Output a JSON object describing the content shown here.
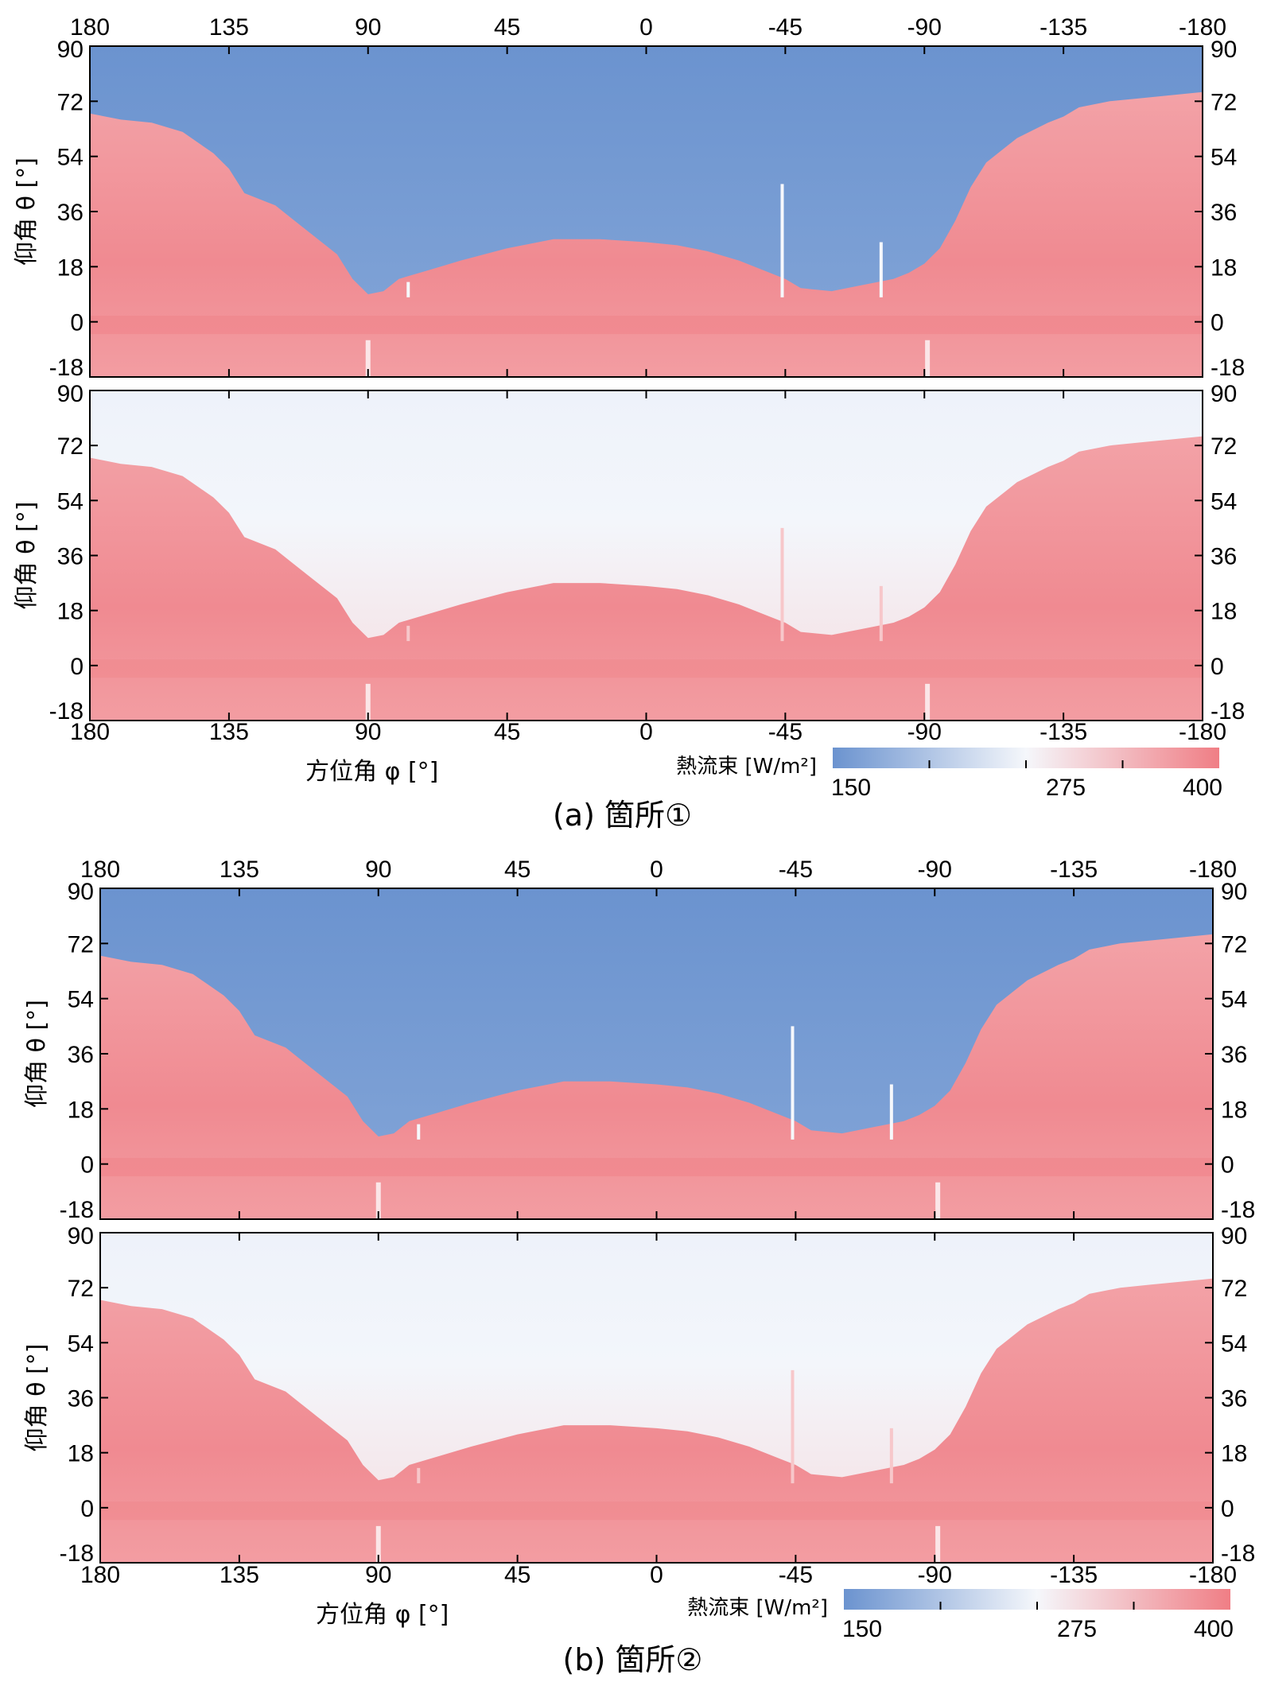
{
  "chart_data": [
    {
      "type": "heatmap",
      "caption": "(a) 箇所①",
      "xlabel": "方位角 φ [°]",
      "ylabel": "仰角 θ [°]",
      "x_ticks": [
        180,
        135,
        90,
        45,
        0,
        -45,
        -90,
        -135,
        -180
      ],
      "y_ticks": [
        90,
        72,
        54,
        36,
        18,
        0,
        -18
      ],
      "xlim": [
        180,
        -180
      ],
      "ylim": [
        -18,
        90
      ],
      "colorbar": {
        "label": "熱流束 [W/m²]",
        "min": 150,
        "mid": 275,
        "max": 400,
        "ticks": [
          "150",
          "275",
          "400"
        ],
        "low_color": "#6b93cf",
        "mid_color": "#f5f7fb",
        "high_color": "#f07e85"
      },
      "panels": [
        {
          "name": "upper",
          "sky_flux": 150,
          "ground_flux": 380
        },
        {
          "name": "lower",
          "sky_flux": 270,
          "ground_flux": 375
        }
      ]
    },
    {
      "type": "heatmap",
      "caption": "(b) 箇所②",
      "xlabel": "方位角 φ [°]",
      "ylabel": "仰角 θ [°]",
      "x_ticks": [
        180,
        135,
        90,
        45,
        0,
        -45,
        -90,
        -135,
        -180
      ],
      "y_ticks": [
        90,
        72,
        54,
        36,
        18,
        0,
        -18
      ],
      "xlim": [
        180,
        -180
      ],
      "ylim": [
        -18,
        90
      ],
      "colorbar": {
        "label": "熱流束 [W/m²]",
        "min": 150,
        "mid": 275,
        "max": 400,
        "ticks": [
          "150",
          "275",
          "400"
        ],
        "low_color": "#6b93cf",
        "mid_color": "#f5f7fb",
        "high_color": "#f07e85"
      },
      "panels": [
        {
          "name": "upper",
          "sky_flux": 150,
          "ground_flux": 380
        },
        {
          "name": "lower",
          "sky_flux": 270,
          "ground_flux": 375
        }
      ]
    }
  ],
  "skyline": {
    "azimuth": [
      180,
      170,
      160,
      150,
      140,
      135,
      130,
      120,
      115,
      110,
      100,
      95,
      90,
      85,
      80,
      70,
      60,
      45,
      30,
      15,
      0,
      -10,
      -20,
      -30,
      -40,
      -45,
      -50,
      -60,
      -70,
      -80,
      -85,
      -90,
      -95,
      -100,
      -105,
      -110,
      -120,
      -130,
      -135,
      -140,
      -150,
      -160,
      -170,
      -180
    ],
    "elevation": [
      68,
      66,
      65,
      62,
      55,
      50,
      42,
      38,
      34,
      30,
      22,
      14,
      9,
      10,
      14,
      17,
      20,
      24,
      27,
      27,
      26,
      25,
      23,
      20,
      16,
      14,
      11,
      10,
      12,
      14,
      16,
      19,
      24,
      33,
      44,
      52,
      60,
      65,
      67,
      70,
      72,
      73,
      74,
      75
    ]
  }
}
